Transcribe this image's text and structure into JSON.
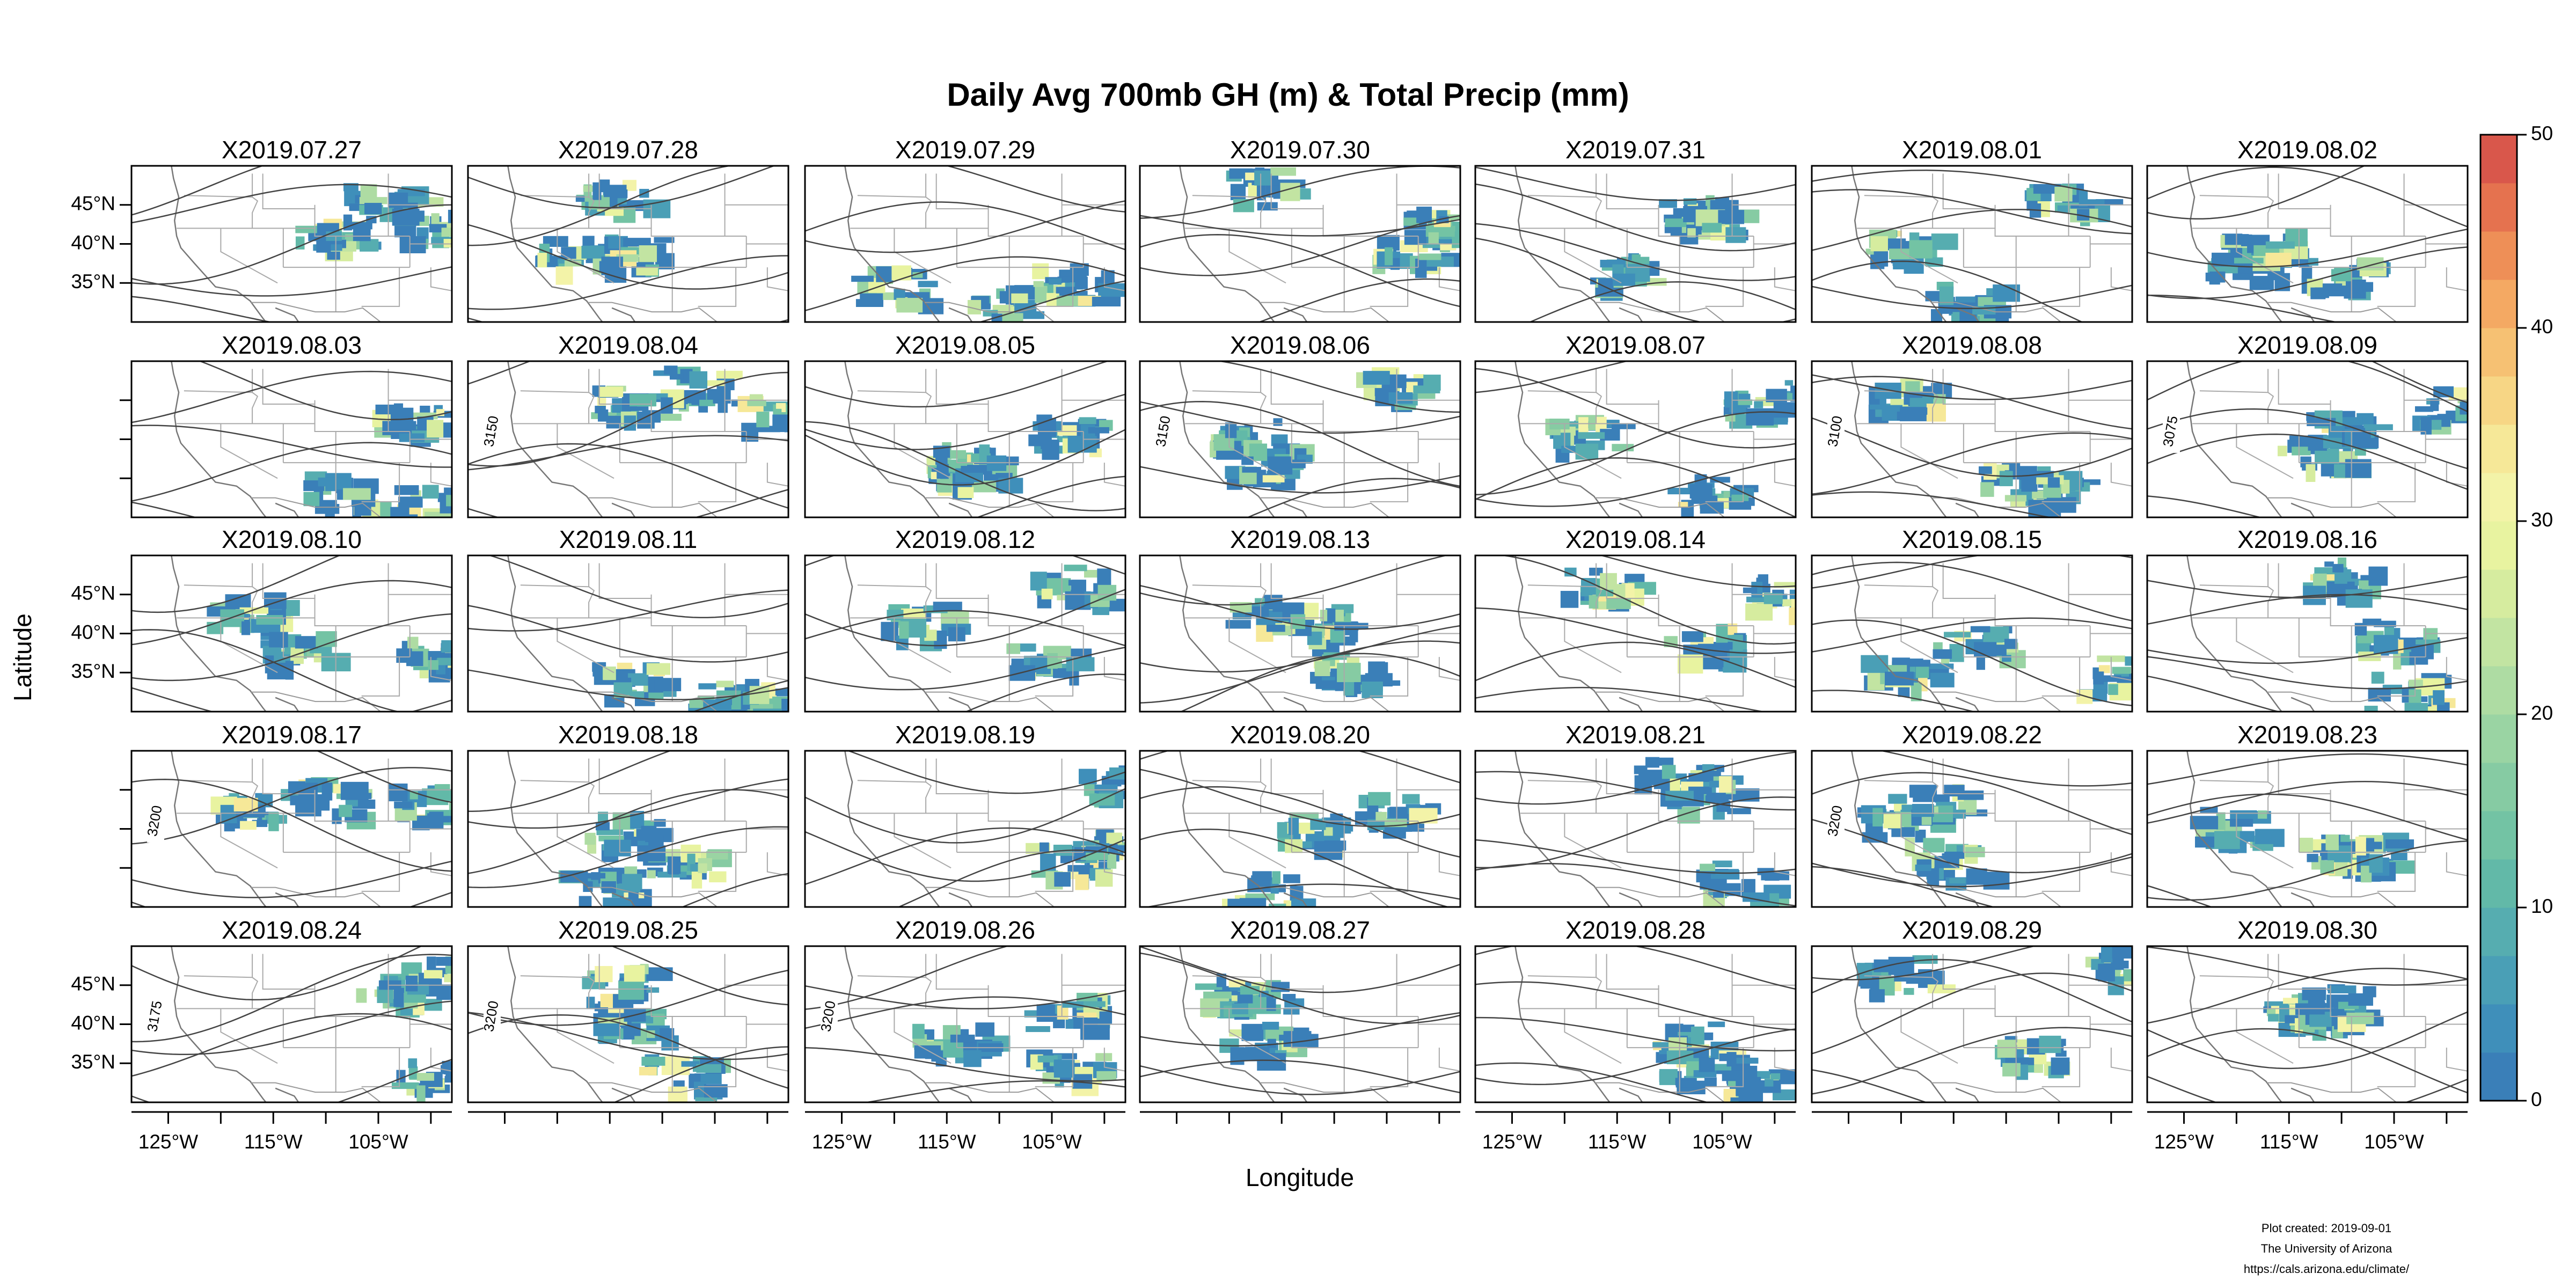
{
  "title": "Daily Avg 700mb GH (m) & Total Precip (mm)",
  "xlabel": "Longitude",
  "ylabel": "Latitude",
  "xlim": [
    -128.5,
    -98
  ],
  "ylim": [
    30,
    50
  ],
  "xticks": [
    {
      "value": -125,
      "label": "125°W"
    },
    {
      "value": -115,
      "label": "115°W"
    },
    {
      "value": -105,
      "label": "105°W"
    }
  ],
  "xticks_minor": [
    -120,
    -110,
    -100
  ],
  "yticks": [
    {
      "value": 35,
      "label": "35°N"
    },
    {
      "value": 40,
      "label": "40°N"
    },
    {
      "value": 45,
      "label": "45°N"
    }
  ],
  "panels": [
    "X2019.07.27",
    "X2019.07.28",
    "X2019.07.29",
    "X2019.07.30",
    "X2019.07.31",
    "X2019.08.01",
    "X2019.08.02",
    "X2019.08.03",
    "X2019.08.04",
    "X2019.08.05",
    "X2019.08.06",
    "X2019.08.07",
    "X2019.08.08",
    "X2019.08.09",
    "X2019.08.10",
    "X2019.08.11",
    "X2019.08.12",
    "X2019.08.13",
    "X2019.08.14",
    "X2019.08.15",
    "X2019.08.16",
    "X2019.08.17",
    "X2019.08.18",
    "X2019.08.19",
    "X2019.08.20",
    "X2019.08.21",
    "X2019.08.22",
    "X2019.08.23",
    "X2019.08.24",
    "X2019.08.25",
    "X2019.08.26",
    "X2019.08.27",
    "X2019.08.28",
    "X2019.08.29",
    "X2019.08.30"
  ],
  "contour_labels": [
    {
      "panel": 8,
      "label": "3150"
    },
    {
      "panel": 10,
      "label": "3150"
    },
    {
      "panel": 12,
      "label": "3100"
    },
    {
      "panel": 13,
      "label": "3075"
    },
    {
      "panel": 21,
      "label": "3200"
    },
    {
      "panel": 26,
      "label": "3200"
    },
    {
      "panel": 28,
      "label": "3175"
    },
    {
      "panel": 29,
      "label": "3200"
    },
    {
      "panel": 30,
      "label": "3200"
    }
  ],
  "colorbar": {
    "lim": [
      0,
      50
    ],
    "ticks": [
      0,
      10,
      20,
      30,
      40,
      50
    ],
    "colors": [
      "#3a7fb8",
      "#3f8fba",
      "#4a9fb6",
      "#56adb0",
      "#62b9a8",
      "#73c3a4",
      "#86cba3",
      "#9ad4a3",
      "#aedca3",
      "#c2e4a2",
      "#d6ec9f",
      "#e8f3a0",
      "#f3f3a8",
      "#f6e898",
      "#f7d685",
      "#f6c173",
      "#f4a963",
      "#ee8f57",
      "#e5724f",
      "#d9574b"
    ]
  },
  "footer": [
    "Plot created: 2019-09-01",
    "The University of Arizona",
    "https://cals.arizona.edu/climate/"
  ]
}
